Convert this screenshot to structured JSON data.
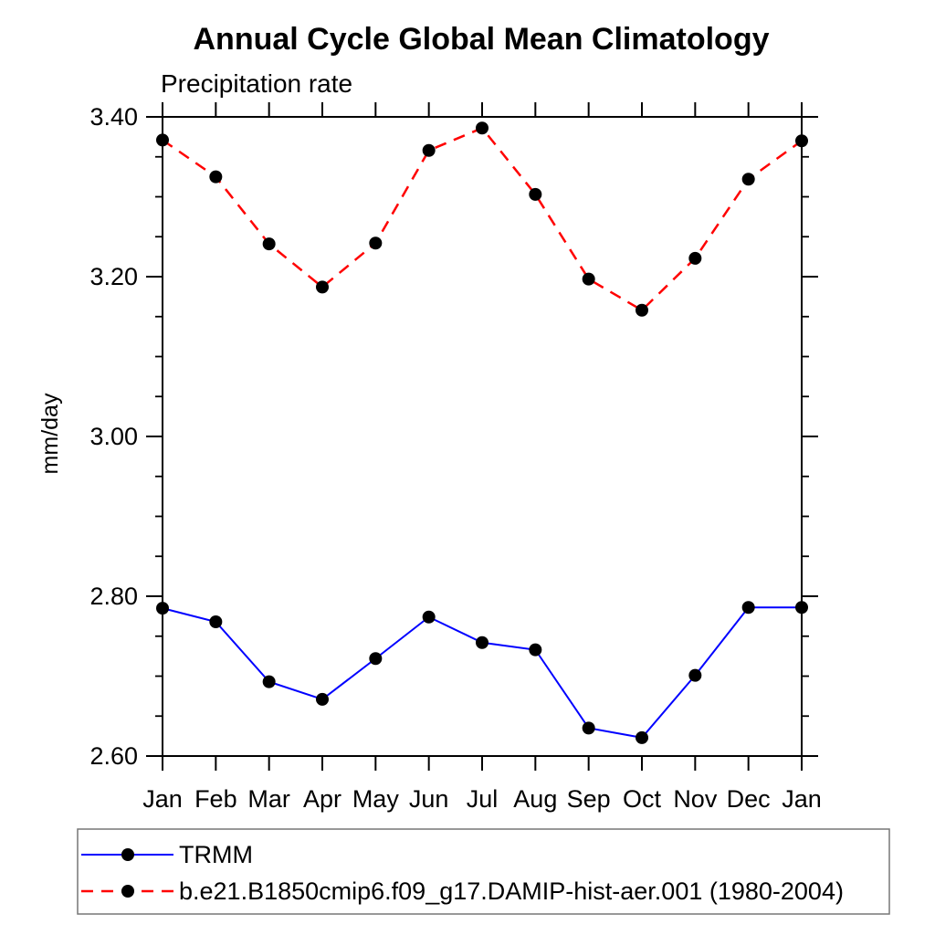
{
  "chart_data": {
    "type": "line",
    "title": "Annual Cycle Global Mean Climatology",
    "subtitle": "Precipitation rate",
    "ylabel": "mm/day",
    "x_categories": [
      "Jan",
      "Feb",
      "Mar",
      "Apr",
      "May",
      "Jun",
      "Jul",
      "Aug",
      "Sep",
      "Oct",
      "Nov",
      "Dec",
      "Jan"
    ],
    "ylim": [
      2.6,
      3.4
    ],
    "y_major_ticks": [
      2.6,
      2.8,
      3.0,
      3.2,
      3.4
    ],
    "y_major_labels": [
      "2.60",
      "2.80",
      "3.00",
      "3.20",
      "3.40"
    ],
    "y_minor_step": 0.05,
    "grid": false,
    "legend_position": "bottom-left",
    "marker": "filled-circle",
    "marker_color": "#000000",
    "axis_color": "#000000",
    "series": [
      {
        "name": "TRMM",
        "color": "#0000ff",
        "style": "solid",
        "values": [
          2.785,
          2.768,
          2.693,
          2.671,
          2.722,
          2.774,
          2.742,
          2.733,
          2.635,
          2.623,
          2.701,
          2.786,
          2.786
        ]
      },
      {
        "name": "b.e21.B1850cmip6.f09_g17.DAMIP-hist-aer.001 (1980-2004)",
        "color": "#ff0000",
        "style": "dashed",
        "values": [
          3.371,
          3.325,
          3.241,
          3.187,
          3.242,
          3.358,
          3.386,
          3.303,
          3.197,
          3.158,
          3.223,
          3.322,
          3.37
        ]
      }
    ]
  }
}
